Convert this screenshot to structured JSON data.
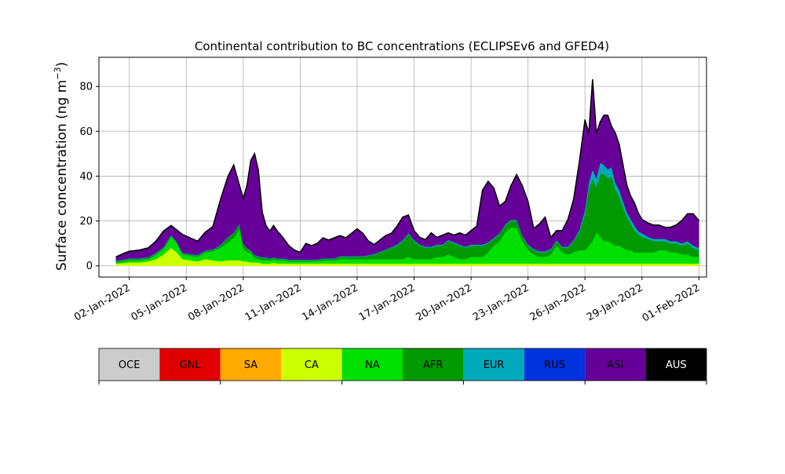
{
  "chart_data": {
    "type": "area",
    "title": "Continental contribution to BC concentrations (ECLIPSEv6 and GFED4)",
    "ylabel": "Surface concentration (ng m",
    "ylabel_sup": "−3",
    "ylabel_close": ")",
    "xlabel": "",
    "ylim": [
      -5,
      93
    ],
    "xlim": [
      -0.6,
      31.4
    ],
    "grid": true,
    "yticks": [
      0,
      20,
      40,
      60,
      80
    ],
    "xticks": [
      {
        "day": 1,
        "label": "02-Jan-2022"
      },
      {
        "day": 4,
        "label": "05-Jan-2022"
      },
      {
        "day": 7,
        "label": "08-Jan-2022"
      },
      {
        "day": 10,
        "label": "11-Jan-2022"
      },
      {
        "day": 13,
        "label": "14-Jan-2022"
      },
      {
        "day": 16,
        "label": "17-Jan-2022"
      },
      {
        "day": 19,
        "label": "20-Jan-2022"
      },
      {
        "day": 22,
        "label": "23-Jan-2022"
      },
      {
        "day": 25,
        "label": "26-Jan-2022"
      },
      {
        "day": 28,
        "label": "29-Jan-2022"
      },
      {
        "day": 31,
        "label": "01-Feb-2022"
      }
    ],
    "x": [
      0.3,
      0.7,
      1.0,
      1.5,
      2.0,
      2.4,
      2.8,
      3.2,
      3.5,
      3.8,
      4.2,
      4.6,
      5.0,
      5.4,
      5.8,
      6.2,
      6.5,
      6.8,
      7.0,
      7.2,
      7.4,
      7.6,
      7.8,
      8.0,
      8.2,
      8.4,
      8.6,
      8.8,
      9.1,
      9.4,
      9.7,
      10.0,
      10.3,
      10.6,
      10.9,
      11.2,
      11.5,
      11.8,
      12.1,
      12.4,
      12.7,
      13.0,
      13.3,
      13.6,
      13.9,
      14.2,
      14.5,
      14.8,
      15.1,
      15.4,
      15.7,
      16.0,
      16.3,
      16.6,
      16.9,
      17.2,
      17.5,
      17.8,
      18.1,
      18.4,
      18.7,
      19.0,
      19.3,
      19.6,
      19.9,
      20.2,
      20.5,
      20.8,
      21.1,
      21.4,
      21.7,
      22.0,
      22.3,
      22.6,
      22.9,
      23.2,
      23.5,
      23.8,
      24.1,
      24.4,
      24.7,
      25.0,
      25.2,
      25.4,
      25.6,
      25.8,
      26.0,
      26.2,
      26.4,
      26.6,
      26.8,
      27.0,
      27.2,
      27.4,
      27.6,
      27.8,
      28.0,
      28.3,
      28.6,
      28.9,
      29.2,
      29.5,
      29.8,
      30.1,
      30.4,
      30.7,
      31.0
    ],
    "series": [
      {
        "name": "CA",
        "color": "#ccff00",
        "values": [
          1.0,
          1.2,
          1.5,
          1.5,
          2.0,
          3.0,
          5.0,
          8.0,
          6.0,
          3.0,
          2.5,
          2.0,
          3.0,
          2.5,
          2.0,
          2.5,
          2.5,
          2.5,
          2.0,
          2.0,
          1.5,
          1.5,
          1.5,
          1.0,
          1.0,
          1.0,
          1.5,
          1.0,
          1.0,
          1.0,
          1.0,
          1.0,
          1.0,
          1.0,
          1.0,
          1.0,
          1.0,
          1.0,
          1.0,
          1.0,
          1.0,
          1.0,
          1.0,
          1.0,
          1.0,
          1.0,
          1.0,
          1.0,
          1.0,
          1.0,
          1.0,
          1.0,
          1.0,
          1.0,
          1.0,
          1.0,
          1.0,
          1.0,
          1.0,
          1.0,
          1.0,
          1.0,
          1.0,
          1.0,
          1.0,
          1.0,
          1.0,
          1.0,
          1.0,
          1.0,
          1.0,
          1.0,
          1.0,
          1.0,
          1.0,
          1.0,
          1.0,
          1.0,
          1.0,
          1.0,
          1.0,
          1.0,
          1.0,
          1.0,
          1.0,
          1.0,
          1.0,
          1.0,
          1.0,
          1.0,
          1.0,
          1.0,
          1.0,
          1.0,
          1.0,
          1.0,
          1.0,
          1.0,
          1.0,
          1.0,
          1.0,
          1.0,
          1.0,
          1.0,
          1.0,
          1.0,
          1.0
        ]
      },
      {
        "name": "NA",
        "color": "#00e000",
        "values": [
          0.5,
          0.8,
          1.0,
          1.0,
          1.0,
          2.0,
          2.5,
          5.0,
          4.0,
          2.0,
          2.0,
          2.0,
          3.0,
          4.0,
          6.0,
          8.0,
          10.0,
          14.0,
          6.0,
          4.0,
          4.0,
          2.0,
          1.5,
          1.5,
          1.5,
          1.5,
          1.5,
          1.5,
          1.5,
          1.0,
          1.0,
          1.0,
          1.0,
          1.0,
          1.0,
          1.5,
          1.5,
          1.5,
          2.0,
          2.0,
          2.0,
          2.0,
          2.0,
          2.0,
          2.0,
          2.0,
          2.0,
          2.0,
          2.0,
          2.0,
          3.0,
          2.0,
          2.0,
          2.0,
          2.0,
          3.0,
          3.0,
          4.0,
          3.0,
          2.0,
          2.0,
          3.0,
          3.0,
          3.0,
          5.0,
          8.0,
          10.0,
          14.0,
          16.0,
          16.0,
          10.0,
          6.0,
          4.0,
          3.0,
          3.0,
          4.0,
          8.0,
          5.0,
          4.0,
          5.0,
          6.0,
          6.0,
          8.0,
          10.0,
          14.0,
          12.0,
          10.0,
          10.0,
          9.0,
          8.0,
          8.0,
          7.0,
          6.0,
          6.0,
          5.0,
          5.0,
          5.0,
          5.0,
          5.0,
          6.0,
          6.0,
          5.0,
          5.0,
          4.0,
          4.0,
          3.0,
          3.0
        ]
      },
      {
        "name": "AFR",
        "color": "#009900",
        "values": [
          0.5,
          0.5,
          0.5,
          0.5,
          0.5,
          0.5,
          0.5,
          0.5,
          0.5,
          0.5,
          0.5,
          0.5,
          0.5,
          0.5,
          1.0,
          2.0,
          2.0,
          2.0,
          1.5,
          1.5,
          1.0,
          1.0,
          1.0,
          1.0,
          1.0,
          0.5,
          0.5,
          0.5,
          0.5,
          0.5,
          0.5,
          0.5,
          0.5,
          0.5,
          0.5,
          0.5,
          0.5,
          0.5,
          1.0,
          1.0,
          1.0,
          1.0,
          1.0,
          1.5,
          2.0,
          3.0,
          4.0,
          5.0,
          6.0,
          8.0,
          10.0,
          8.0,
          6.0,
          5.0,
          5.0,
          5.0,
          5.0,
          6.0,
          6.0,
          6.0,
          5.0,
          5.0,
          5.0,
          5.0,
          4.0,
          3.0,
          3.0,
          3.0,
          3.0,
          3.0,
          2.0,
          2.0,
          2.0,
          2.0,
          2.0,
          2.0,
          2.0,
          2.0,
          3.0,
          5.0,
          8.0,
          16.0,
          25.0,
          28.0,
          20.0,
          28.0,
          30.0,
          28.0,
          30.0,
          25.0,
          22.0,
          18.0,
          15.0,
          12.0,
          10.0,
          8.0,
          7.0,
          6.0,
          5.0,
          4.0,
          4.0,
          4.0,
          4.0,
          4.0,
          5.0,
          4.0,
          3.0
        ]
      },
      {
        "name": "EUR",
        "color": "#00aabb",
        "values": [
          0.3,
          0.3,
          0.3,
          0.3,
          0.3,
          0.3,
          0.3,
          0.3,
          0.3,
          0.3,
          0.3,
          0.3,
          0.3,
          0.3,
          0.3,
          0.3,
          0.3,
          0.3,
          0.3,
          0.3,
          0.3,
          0.3,
          0.3,
          0.3,
          0.3,
          0.3,
          0.3,
          0.3,
          0.3,
          0.3,
          0.3,
          0.3,
          0.3,
          0.3,
          0.3,
          0.3,
          0.3,
          0.3,
          0.3,
          0.3,
          0.3,
          0.3,
          0.3,
          0.3,
          0.3,
          0.3,
          0.3,
          0.3,
          0.5,
          0.5,
          0.5,
          0.5,
          0.5,
          0.5,
          0.5,
          0.5,
          0.5,
          0.5,
          0.5,
          0.5,
          0.5,
          0.5,
          0.5,
          0.5,
          0.5,
          0.5,
          0.5,
          0.5,
          0.5,
          0.5,
          0.5,
          0.5,
          0.5,
          0.5,
          0.5,
          0.5,
          0.5,
          0.5,
          0.5,
          0.5,
          1.0,
          2.0,
          3.0,
          4.0,
          4.0,
          5.0,
          4.0,
          4.0,
          4.0,
          3.0,
          3.0,
          3.0,
          2.0,
          2.0,
          2.0,
          1.5,
          1.5,
          1.0,
          1.0,
          1.0,
          1.0,
          1.0,
          1.0,
          1.0,
          1.0,
          1.0,
          1.0
        ]
      },
      {
        "name": "ASI",
        "color": "#660099",
        "values": [
          1.5,
          2.5,
          3.0,
          3.5,
          4.0,
          5.0,
          7.0,
          4.0,
          5.0,
          8.0,
          7.0,
          6.0,
          8.0,
          10.0,
          20.0,
          27.0,
          30.0,
          17.0,
          20.0,
          28.0,
          40.0,
          45.0,
          38.0,
          20.0,
          14.0,
          12.0,
          14.0,
          12.0,
          9.0,
          6.0,
          4.0,
          3.0,
          7.0,
          6.0,
          7.0,
          9.0,
          8.0,
          9.0,
          9.0,
          8.0,
          10.0,
          12.0,
          10.0,
          6.0,
          4.0,
          5.0,
          6.0,
          6.0,
          8.0,
          10.0,
          8.0,
          4.0,
          3.0,
          3.0,
          6.0,
          3.0,
          4.0,
          3.0,
          3.0,
          5.0,
          5.0,
          6.0,
          8.0,
          24.0,
          27.0,
          22.0,
          12.0,
          10.0,
          15.0,
          20.0,
          22.0,
          19.0,
          9.0,
          12.0,
          15.0,
          5.0,
          4.0,
          7.0,
          12.0,
          18.0,
          30.0,
          40.0,
          22.0,
          40.0,
          20.0,
          18.0,
          22.0,
          24.0,
          18.0,
          22.0,
          20.0,
          16.0,
          12.0,
          10.0,
          10.0,
          8.0,
          6.0,
          6.0,
          6.0,
          6.0,
          5.0,
          6.0,
          7.0,
          10.0,
          12.0,
          14.0,
          12.0
        ]
      },
      {
        "name": "AUS",
        "color": "#000000",
        "values": [
          0.2,
          0.2,
          0.2,
          0.2,
          0.2,
          0.2,
          0.2,
          0.2,
          0.2,
          0.2,
          0.2,
          0.2,
          0.2,
          0.2,
          0.2,
          0.2,
          0.2,
          0.2,
          0.2,
          0.2,
          0.2,
          0.2,
          0.2,
          0.2,
          0.2,
          0.2,
          0.2,
          0.2,
          0.2,
          0.2,
          0.2,
          0.2,
          0.2,
          0.2,
          0.2,
          0.2,
          0.2,
          0.2,
          0.2,
          0.2,
          0.2,
          0.2,
          0.2,
          0.2,
          0.2,
          0.2,
          0.2,
          0.2,
          0.2,
          0.2,
          0.2,
          0.2,
          0.2,
          0.2,
          0.2,
          0.2,
          0.2,
          0.2,
          0.2,
          0.2,
          0.2,
          0.2,
          0.2,
          0.2,
          0.2,
          0.2,
          0.2,
          0.2,
          0.2,
          0.2,
          0.2,
          0.2,
          0.2,
          0.2,
          0.2,
          0.2,
          0.2,
          0.2,
          0.2,
          0.2,
          0.2,
          0.2,
          0.2,
          0.2,
          0.2,
          0.2,
          0.2,
          0.2,
          0.2,
          0.2,
          0.2,
          0.2,
          0.2,
          0.2,
          0.2,
          0.2,
          0.2,
          0.2,
          0.2,
          0.2,
          0.2,
          0.2,
          0.2,
          0.2,
          0.2,
          0.2,
          0.2
        ]
      }
    ],
    "legend": [
      {
        "name": "OCE",
        "color": "#cccccc"
      },
      {
        "name": "GNL",
        "color": "#e00000"
      },
      {
        "name": "SA",
        "color": "#ffaa00"
      },
      {
        "name": "CA",
        "color": "#ccff00"
      },
      {
        "name": "NA",
        "color": "#00e000"
      },
      {
        "name": "AFR",
        "color": "#009900"
      },
      {
        "name": "EUR",
        "color": "#00aabb"
      },
      {
        "name": "RUS",
        "color": "#0033dd"
      },
      {
        "name": "ASI",
        "color": "#660099"
      },
      {
        "name": "AUS",
        "color": "#000000",
        "text_color": "#ffffff"
      }
    ],
    "legend_placement": "bottom"
  }
}
